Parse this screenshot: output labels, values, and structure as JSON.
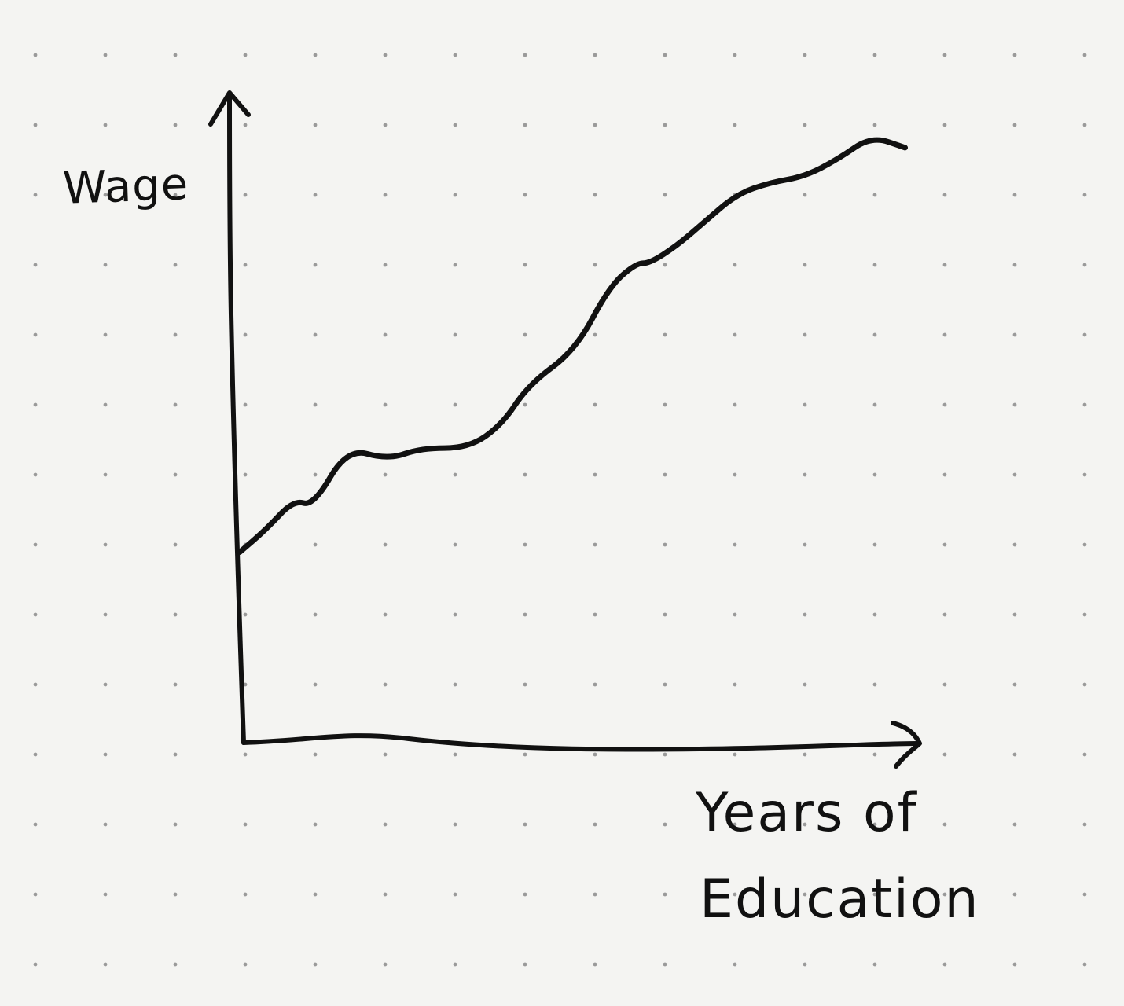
{
  "chart_data": {
    "type": "line",
    "title": "",
    "xlabel": "Years of Education",
    "xlabel_lines": [
      "Years of",
      "Education"
    ],
    "ylabel": "Wage",
    "xlim": [
      0,
      10
    ],
    "ylim": [
      0,
      10
    ],
    "grid": "dotted",
    "tick_labels": false,
    "series": [
      {
        "x": [
          0,
          0.4,
          0.8,
          1.1,
          1.6,
          2.2,
          2.7,
          3.4,
          3.9,
          4.3,
          5.0,
          5.5,
          5.9,
          6.1,
          6.5,
          6.9,
          7.4,
          7.9,
          8.4,
          8.9,
          9.4,
          9.9
        ],
        "y": [
          3.3,
          3.7,
          4.2,
          4.1,
          5.1,
          4.9,
          5.1,
          5.1,
          5.5,
          6.2,
          6.8,
          7.9,
          8.3,
          8.3,
          8.6,
          9.0,
          9.5,
          9.7,
          9.8,
          10.1,
          10.5,
          10.3
        ]
      }
    ]
  },
  "colors": {
    "paper": "#f4f4f2",
    "ink": "#111111",
    "grid_dot": "#9a9a9a"
  }
}
